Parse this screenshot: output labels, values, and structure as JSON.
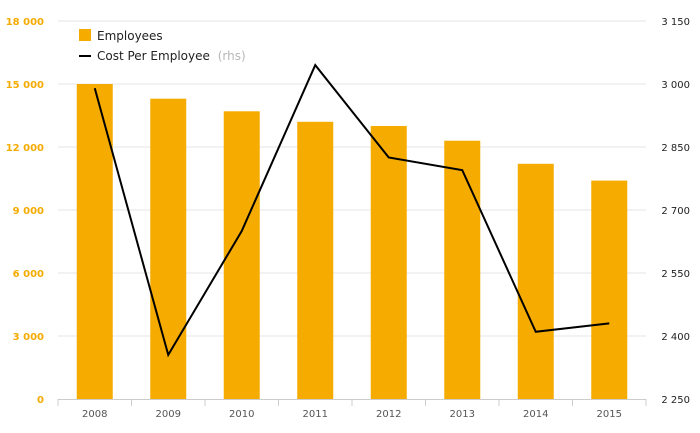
{
  "chart_data": {
    "type": "bar",
    "categories": [
      "2008",
      "2009",
      "2010",
      "2011",
      "2012",
      "2013",
      "2014",
      "2015"
    ],
    "series": [
      {
        "name": "Employees",
        "type": "bar",
        "axis": "left",
        "color": "#f5ab00",
        "values": [
          15000,
          14300,
          13700,
          13200,
          13000,
          12300,
          11200,
          10400
        ]
      },
      {
        "name": "Cost Per Employee",
        "type": "line",
        "axis": "right",
        "color": "#000000",
        "values": [
          2990,
          2355,
          2650,
          3045,
          2825,
          2795,
          2410,
          2430
        ]
      }
    ],
    "left_axis": {
      "ylim": [
        0,
        18000
      ],
      "ticks": [
        0,
        3000,
        6000,
        9000,
        12000,
        15000,
        18000
      ],
      "tick_labels": [
        "0",
        "3 000",
        "6 000",
        "9 000",
        "12 000",
        "15 000",
        "18 000"
      ]
    },
    "right_axis": {
      "ylim": [
        2250,
        3150
      ],
      "ticks": [
        2250,
        2400,
        2550,
        2700,
        2850,
        3000,
        3150
      ],
      "tick_labels": [
        "2 250",
        "2 400",
        "2 550",
        "2 700",
        "2 850",
        "3 000",
        "3 150"
      ]
    },
    "grid": true,
    "legend": {
      "position": "top-left",
      "entries": [
        {
          "label": "Employees",
          "suffix": ""
        },
        {
          "label": "Cost Per Employee",
          "suffix": "(rhs)"
        }
      ]
    }
  }
}
